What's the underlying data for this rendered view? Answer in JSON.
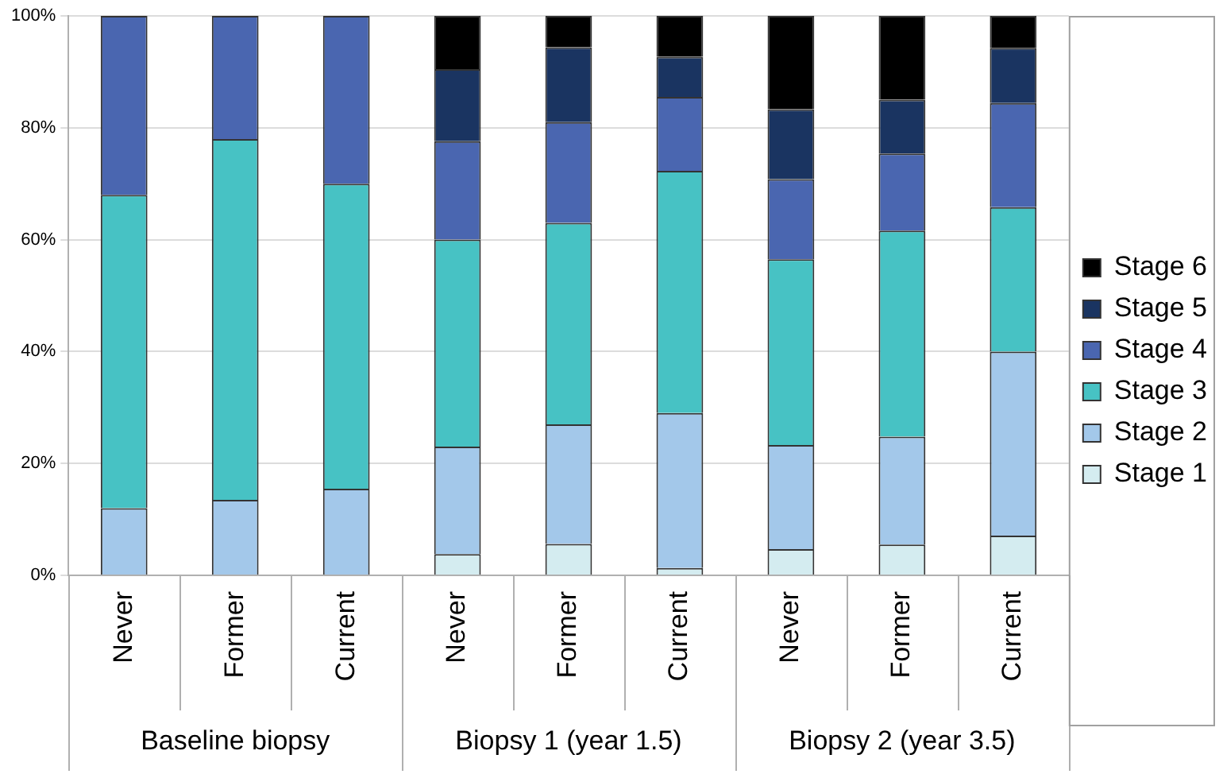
{
  "chart_data": {
    "type": "bar",
    "stacked": true,
    "categories": [
      "Never",
      "Former",
      "Current",
      "Never",
      "Former",
      "Current",
      "Never",
      "Former",
      "Current"
    ],
    "annotations": [
      "Baseline biopsy",
      "Biopsy 1 (year 1.5)",
      "Biopsy 2 (year 3.5)"
    ],
    "series": [
      {
        "name": "Stage 1",
        "color": "#d4ecf0",
        "values": [
          0,
          0,
          0,
          3.8,
          5.6,
          1.3,
          4.7,
          5.5,
          7.1
        ]
      },
      {
        "name": "Stage 2",
        "color": "#a3c8ea",
        "values": [
          12,
          13.5,
          15.5,
          19.2,
          21.4,
          27.7,
          18.6,
          19.3,
          32.9
        ]
      },
      {
        "name": "Stage 3",
        "color": "#47c2c4",
        "values": [
          56,
          64.5,
          54.5,
          37,
          36,
          43.3,
          33.2,
          36.8,
          25.8
        ]
      },
      {
        "name": "Stage 4",
        "color": "#4a66b0",
        "values": [
          32,
          22,
          30,
          17.6,
          18,
          13.2,
          14.3,
          13.8,
          18.6
        ]
      },
      {
        "name": "Stage 5",
        "color": "#1a3461",
        "values": [
          0,
          0,
          0,
          12.9,
          13.4,
          7.2,
          12.5,
          9.6,
          9.9
        ]
      },
      {
        "name": "Stage 6",
        "color": "#000000",
        "values": [
          0,
          0,
          0,
          9.5,
          5.6,
          7.3,
          16.7,
          15,
          5.7
        ]
      }
    ],
    "ylim": [
      0,
      100
    ],
    "yticks": [
      {
        "value": 0,
        "label": "0%"
      },
      {
        "value": 20,
        "label": "20%"
      },
      {
        "value": 40,
        "label": "40%"
      },
      {
        "value": 60,
        "label": "60%"
      },
      {
        "value": 80,
        "label": "80%"
      },
      {
        "value": 100,
        "label": "100%"
      }
    ],
    "grid": "y",
    "legend": "right"
  }
}
